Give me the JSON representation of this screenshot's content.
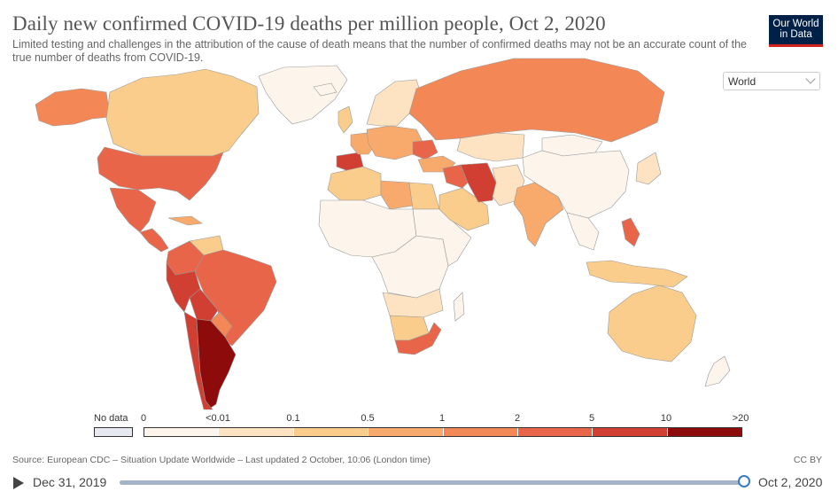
{
  "header": {
    "title": "Daily new confirmed COVID-19 deaths per million people, Oct 2, 2020",
    "subtitle": "Limited testing and challenges in the attribution of the cause of death means that the number of confirmed deaths may not be an accurate count of the true number of deaths from COVID-19.",
    "logo_line1": "Our World",
    "logo_line2": "in Data"
  },
  "controls": {
    "entity_select": "World"
  },
  "colors": {
    "no_data": "#e6e9f0",
    "b0": "#fdf5ec",
    "b1": "#fde3c1",
    "b2": "#fbcd8c",
    "b3": "#f8a96c",
    "b4": "#f38856",
    "b5": "#e9654a",
    "b6": "#d13f33",
    "b7": "#8e0b0b",
    "ocean": "#ffffff",
    "border": "#999999"
  },
  "legend": {
    "no_data_label": "No data",
    "ticks": [
      "0",
      "<0.01",
      "0.1",
      "0.5",
      "1",
      "2",
      "5",
      "10",
      ">20"
    ],
    "bins": [
      "b0",
      "b1",
      "b2",
      "b3",
      "b4",
      "b5",
      "b6",
      "b7"
    ]
  },
  "map": {
    "regions": [
      {
        "name": "alaska",
        "bin": "b4"
      },
      {
        "name": "canada",
        "bin": "b2"
      },
      {
        "name": "greenland",
        "bin": "b0"
      },
      {
        "name": "usa",
        "bin": "b5"
      },
      {
        "name": "mexico",
        "bin": "b5"
      },
      {
        "name": "central-america",
        "bin": "b5"
      },
      {
        "name": "cuba",
        "bin": "b3"
      },
      {
        "name": "venezuela",
        "bin": "b2"
      },
      {
        "name": "colombia",
        "bin": "b5"
      },
      {
        "name": "peru",
        "bin": "b6"
      },
      {
        "name": "brazil",
        "bin": "b5"
      },
      {
        "name": "bolivia",
        "bin": "b6"
      },
      {
        "name": "paraguay",
        "bin": "b4"
      },
      {
        "name": "chile",
        "bin": "b6"
      },
      {
        "name": "argentina",
        "bin": "b7"
      },
      {
        "name": "iceland",
        "bin": "b0"
      },
      {
        "name": "uk",
        "bin": "b2"
      },
      {
        "name": "spain",
        "bin": "b6"
      },
      {
        "name": "france",
        "bin": "b3"
      },
      {
        "name": "central-europe",
        "bin": "b3"
      },
      {
        "name": "scandinavia",
        "bin": "b1"
      },
      {
        "name": "romania",
        "bin": "b5"
      },
      {
        "name": "russia",
        "bin": "b4"
      },
      {
        "name": "kazakhstan",
        "bin": "b1"
      },
      {
        "name": "turkey",
        "bin": "b3"
      },
      {
        "name": "north-africa-west",
        "bin": "b2"
      },
      {
        "name": "libya",
        "bin": "b3"
      },
      {
        "name": "egypt",
        "bin": "b2"
      },
      {
        "name": "sahel-west-africa",
        "bin": "b0"
      },
      {
        "name": "central-africa",
        "bin": "b0"
      },
      {
        "name": "east-africa",
        "bin": "b0"
      },
      {
        "name": "angola-zambia",
        "bin": "b1"
      },
      {
        "name": "namibia-botswana",
        "bin": "b2"
      },
      {
        "name": "south-africa",
        "bin": "b5"
      },
      {
        "name": "madagascar",
        "bin": "b0"
      },
      {
        "name": "saudi-arabia",
        "bin": "b2"
      },
      {
        "name": "iraq-syria",
        "bin": "b5"
      },
      {
        "name": "iran",
        "bin": "b6"
      },
      {
        "name": "afghanistan-pakistan",
        "bin": "b1"
      },
      {
        "name": "india",
        "bin": "b3"
      },
      {
        "name": "china",
        "bin": "b0"
      },
      {
        "name": "mongolia",
        "bin": "b0"
      },
      {
        "name": "southeast-asia",
        "bin": "b0"
      },
      {
        "name": "philippines",
        "bin": "b5"
      },
      {
        "name": "indonesia",
        "bin": "b2"
      },
      {
        "name": "japan",
        "bin": "b1"
      },
      {
        "name": "australia",
        "bin": "b2"
      },
      {
        "name": "new-zealand",
        "bin": "b0"
      }
    ]
  },
  "footer": {
    "source": "Source: European CDC – Situation Update Worldwide – Last updated 2 October, 10:06 (London time)",
    "license": "CC BY"
  },
  "timeline": {
    "start_date": "Dec 31, 2019",
    "end_date": "Oct 2, 2020",
    "position": 1.0
  }
}
